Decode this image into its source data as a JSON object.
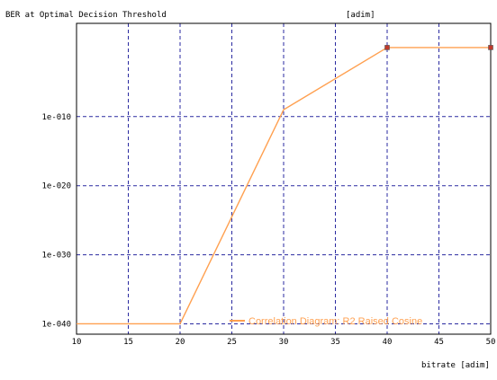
{
  "chart_data": {
    "type": "line",
    "title": "BER at Optimal Decision Threshold",
    "y_unit": "[adim]",
    "xlabel": "bitrate [adim]",
    "xlim": [
      10,
      50
    ],
    "x_ticks": [
      10,
      15,
      20,
      25,
      30,
      35,
      40,
      45,
      50
    ],
    "y_scale": "log",
    "ylim_exponent": [
      -41.5,
      3.5
    ],
    "y_ticks": [
      {
        "exp": -10,
        "label": "1e-010"
      },
      {
        "exp": -20,
        "label": "1e-020"
      },
      {
        "exp": -30,
        "label": "1e-030"
      },
      {
        "exp": -40,
        "label": "1e-040"
      }
    ],
    "grid": true,
    "legend_position": "bottom-right",
    "series": [
      {
        "name": "Correlation Diagram: R2 Raised Cosine",
        "color": "#ffa050",
        "x": [
          10,
          20,
          30,
          40,
          50
        ],
        "y_exp": [
          -40,
          -40,
          -9,
          0,
          0
        ]
      }
    ]
  }
}
